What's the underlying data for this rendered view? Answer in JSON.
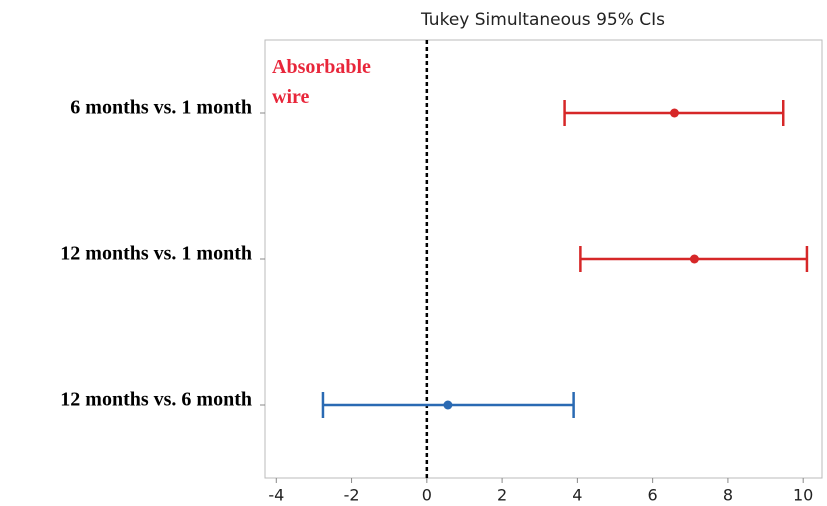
{
  "chart_data": {
    "type": "interval",
    "title": "Tukey Simultaneous 95% CIs",
    "annotation": [
      "Absorbable",
      "wire"
    ],
    "annotation_color": "#e8263a",
    "categories": [
      "6 months vs. 1 month",
      "12 months vs. 1 month",
      "12 months vs. 6 month"
    ],
    "values": [
      6.58,
      7.11,
      0.56
    ],
    "lower": [
      3.66,
      4.08,
      -2.76
    ],
    "upper": [
      9.47,
      10.1,
      3.9
    ],
    "colors": [
      "#d62728",
      "#d62728",
      "#2a6ab3"
    ],
    "xlim": [
      -4.3,
      10.5
    ],
    "xticks": [
      -4,
      -2,
      0,
      2,
      4,
      6,
      8,
      10
    ],
    "reference_line": 0
  }
}
